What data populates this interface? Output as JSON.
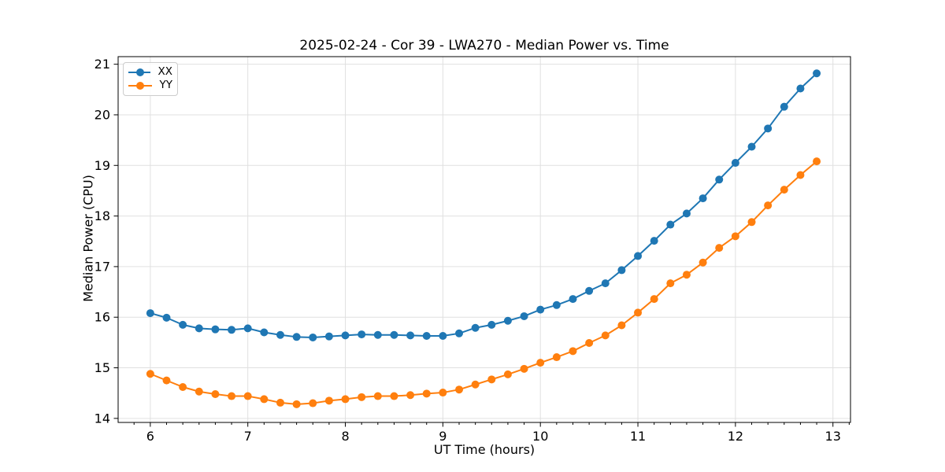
{
  "chart_data": {
    "type": "line",
    "title": "2025-02-24 - Cor 39 - LWA270 - Median Power vs. Time",
    "xlabel": "UT Time (hours)",
    "ylabel": "Median Power (CPU)",
    "xlim": [
      5.67,
      13.18
    ],
    "ylim": [
      13.92,
      21.15
    ],
    "x_ticks": [
      6,
      7,
      8,
      9,
      10,
      11,
      12,
      13
    ],
    "y_ticks": [
      14,
      15,
      16,
      17,
      18,
      19,
      20,
      21
    ],
    "minor_x_ticks_per_hour": 6,
    "grid": true,
    "grid_color": "#e0e0e0",
    "legend_position": "upper-left",
    "marker": "circle",
    "x": [
      6.0,
      6.1667,
      6.3333,
      6.5,
      6.6667,
      6.8333,
      7.0,
      7.1667,
      7.3333,
      7.5,
      7.6667,
      7.8333,
      8.0,
      8.1667,
      8.3333,
      8.5,
      8.6667,
      8.8333,
      9.0,
      9.1667,
      9.3333,
      9.5,
      9.6667,
      9.8333,
      10.0,
      10.1667,
      10.3333,
      10.5,
      10.6667,
      10.8333,
      11.0,
      11.1667,
      11.3333,
      11.5,
      11.6667,
      11.8333,
      12.0,
      12.1667,
      12.3333,
      12.5,
      12.6667,
      12.8333
    ],
    "series": [
      {
        "name": "XX",
        "color": "#1f77b4",
        "values": [
          16.08,
          15.99,
          15.85,
          15.78,
          15.76,
          15.75,
          15.78,
          15.7,
          15.65,
          15.61,
          15.6,
          15.62,
          15.64,
          15.66,
          15.65,
          15.65,
          15.64,
          15.63,
          15.63,
          15.68,
          15.79,
          15.85,
          15.93,
          16.02,
          16.15,
          16.24,
          16.36,
          16.52,
          16.67,
          16.93,
          17.21,
          17.51,
          17.83,
          18.05,
          18.35,
          18.72,
          19.05,
          19.37,
          19.73,
          20.16,
          20.52,
          20.82
        ]
      },
      {
        "name": "YY",
        "color": "#ff7f0e",
        "values": [
          14.88,
          14.75,
          14.62,
          14.53,
          14.48,
          14.44,
          14.44,
          14.38,
          14.31,
          14.28,
          14.3,
          14.35,
          14.38,
          14.42,
          14.44,
          14.44,
          14.46,
          14.49,
          14.51,
          14.57,
          14.67,
          14.77,
          14.87,
          14.98,
          15.1,
          15.21,
          15.33,
          15.49,
          15.64,
          15.84,
          16.09,
          16.36,
          16.67,
          16.84,
          17.08,
          17.37,
          17.6,
          17.88,
          18.21,
          18.52,
          18.81,
          19.08
        ]
      }
    ]
  }
}
